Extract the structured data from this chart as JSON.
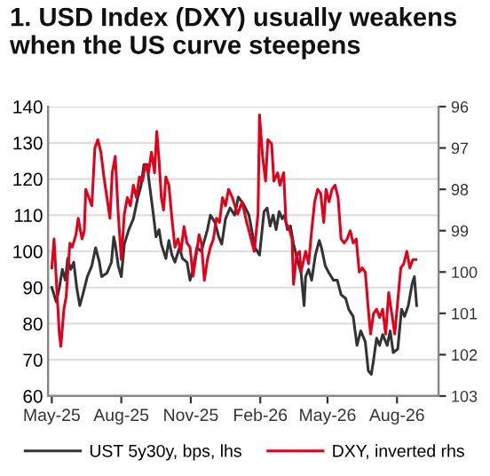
{
  "chart_data": {
    "type": "line",
    "title": "1. USD Index (DXY) usually weakens\nwhen the US curve steepens",
    "xlim": [
      "2025-04-26",
      "2026-09-25"
    ],
    "xticks": [
      {
        "value": "2025-05-01",
        "label": "May-25"
      },
      {
        "value": "2025-08-01",
        "label": "Aug-25"
      },
      {
        "value": "2025-11-01",
        "label": "Nov-25"
      },
      {
        "value": "2026-02-01",
        "label": "Feb-26"
      },
      {
        "value": "2026-05-01",
        "label": "May-26"
      },
      {
        "value": "2026-08-01",
        "label": "Aug-26"
      }
    ],
    "ylim": [
      60,
      140
    ],
    "yticks": [
      60,
      70,
      80,
      90,
      100,
      110,
      120,
      130,
      140
    ],
    "y2lim": [
      103,
      96
    ],
    "y2ticks": [
      96,
      97,
      98,
      99,
      100,
      101,
      102,
      103
    ],
    "grid": "y",
    "legend": "bottom",
    "marker": "none",
    "line_style": "solid",
    "series": [
      {
        "name": "UST 5y30y, bps, lhs",
        "color": "#333333",
        "x": [
          "2025-05-01",
          "2025-05-07",
          "2025-05-11",
          "2025-05-15",
          "2025-05-19",
          "2025-05-22",
          "2025-05-26",
          "2025-05-30",
          "2025-06-03",
          "2025-06-07",
          "2025-06-11",
          "2025-06-17",
          "2025-06-23",
          "2025-06-28",
          "2025-07-03",
          "2025-07-06",
          "2025-07-13",
          "2025-07-19",
          "2025-07-22",
          "2025-07-24",
          "2025-07-28",
          "2025-08-01",
          "2025-08-05",
          "2025-08-11",
          "2025-08-17",
          "2025-08-23",
          "2025-08-27",
          "2025-08-31",
          "2025-09-04",
          "2025-09-07",
          "2025-09-12",
          "2025-09-16",
          "2025-09-20",
          "2025-09-23",
          "2025-09-29",
          "2025-10-03",
          "2025-10-07",
          "2025-10-11",
          "2025-10-17",
          "2025-10-21",
          "2025-10-27",
          "2025-10-31",
          "2025-11-04",
          "2025-11-09",
          "2025-11-15",
          "2025-11-19",
          "2025-11-23",
          "2025-11-27",
          "2025-12-03",
          "2025-12-08",
          "2025-12-12",
          "2025-12-17",
          "2025-12-23",
          "2025-12-29",
          "2026-01-03",
          "2026-01-10",
          "2026-01-17",
          "2026-01-25",
          "2026-01-31",
          "2026-02-06",
          "2026-02-10",
          "2026-02-14",
          "2026-02-18",
          "2026-02-22",
          "2026-02-26",
          "2026-03-02",
          "2026-03-05",
          "2026-03-09",
          "2026-03-13",
          "2026-03-17",
          "2026-03-23",
          "2026-03-27",
          "2026-03-31",
          "2026-04-02",
          "2026-04-06",
          "2026-04-10",
          "2026-04-15",
          "2026-04-20",
          "2026-04-23",
          "2026-04-28",
          "2026-05-03",
          "2026-05-09",
          "2026-05-14",
          "2026-05-19",
          "2026-05-25",
          "2026-05-29",
          "2026-06-04",
          "2026-06-09",
          "2026-06-14",
          "2026-06-20",
          "2026-06-24",
          "2026-06-28",
          "2026-07-01",
          "2026-07-05",
          "2026-07-09",
          "2026-07-13",
          "2026-07-19",
          "2026-07-23",
          "2026-07-27",
          "2026-08-02",
          "2026-08-07",
          "2026-08-11",
          "2026-08-16",
          "2026-08-21",
          "2026-08-24",
          "2026-08-27"
        ],
        "values": [
          90,
          86,
          90,
          95,
          92,
          98,
          95,
          97,
          90,
          85,
          88,
          93,
          96,
          101,
          97,
          93,
          94,
          97,
          104,
          102,
          96,
          93,
          102,
          106,
          109,
          115,
          118,
          124,
          124,
          119,
          111,
          104,
          106,
          102,
          98,
          103,
          99,
          97,
          101,
          98,
          97,
          92,
          95,
          101,
          100,
          103,
          106,
          110,
          108,
          104,
          102,
          109,
          112,
          110,
          115,
          113,
          110,
          101,
          99,
          111,
          112,
          107,
          110,
          106,
          111,
          109,
          110,
          106,
          107,
          102,
          97,
          94,
          85,
          93,
          95,
          92,
          99,
          103,
          101,
          96,
          94,
          92,
          92,
          88,
          87,
          84,
          82,
          74,
          78,
          75,
          67,
          66,
          70,
          76,
          74,
          77,
          74,
          78,
          72,
          73,
          84,
          82,
          85,
          91,
          93,
          85
        ]
      },
      {
        "name": "DXY, inverted rhs",
        "color": "#e3001b",
        "axis": "y2",
        "x": [
          "2025-05-01",
          "2025-05-04",
          "2025-05-07",
          "2025-05-11",
          "2025-05-13",
          "2025-05-17",
          "2025-05-20",
          "2025-05-25",
          "2025-05-28",
          "2025-06-02",
          "2025-06-05",
          "2025-06-10",
          "2025-06-13",
          "2025-06-15",
          "2025-06-19",
          "2025-06-23",
          "2025-06-27",
          "2025-07-01",
          "2025-07-05",
          "2025-07-09",
          "2025-07-13",
          "2025-07-17",
          "2025-07-20",
          "2025-07-24",
          "2025-07-28",
          "2025-08-01",
          "2025-08-05",
          "2025-08-09",
          "2025-08-13",
          "2025-08-17",
          "2025-08-21",
          "2025-08-25",
          "2025-08-29",
          "2025-09-02",
          "2025-09-06",
          "2025-09-10",
          "2025-09-14",
          "2025-09-17",
          "2025-09-20",
          "2025-09-23",
          "2025-09-26",
          "2025-09-29",
          "2025-10-03",
          "2025-10-07",
          "2025-10-11",
          "2025-10-15",
          "2025-10-19",
          "2025-10-23",
          "2025-10-27",
          "2025-10-31",
          "2025-11-04",
          "2025-11-08",
          "2025-11-12",
          "2025-11-15",
          "2025-11-19",
          "2025-11-23",
          "2025-11-27",
          "2025-12-01",
          "2025-12-05",
          "2025-12-09",
          "2025-12-13",
          "2025-12-17",
          "2025-12-21",
          "2025-12-26",
          "2026-01-02",
          "2026-01-08",
          "2026-01-14",
          "2026-01-17",
          "2026-01-24",
          "2026-01-29",
          "2026-01-31",
          "2026-02-04",
          "2026-02-08",
          "2026-02-11",
          "2026-02-16",
          "2026-02-19",
          "2026-02-24",
          "2026-02-27",
          "2026-03-04",
          "2026-03-07",
          "2026-03-12",
          "2026-03-15",
          "2026-03-17",
          "2026-03-21",
          "2026-03-25",
          "2026-03-27",
          "2026-04-02",
          "2026-04-06",
          "2026-04-10",
          "2026-04-14",
          "2026-04-18",
          "2026-04-22",
          "2026-04-26",
          "2026-04-29",
          "2026-05-03",
          "2026-05-07",
          "2026-05-11",
          "2026-05-15",
          "2026-05-19",
          "2026-05-23",
          "2026-05-27",
          "2026-05-31",
          "2026-06-04",
          "2026-06-08",
          "2026-06-12",
          "2026-06-16",
          "2026-06-20",
          "2026-06-24",
          "2026-06-27",
          "2026-07-01",
          "2026-07-05",
          "2026-07-09",
          "2026-07-13",
          "2026-07-17",
          "2026-07-21",
          "2026-07-25",
          "2026-07-29",
          "2026-08-02",
          "2026-08-06",
          "2026-08-10",
          "2026-08-14",
          "2026-08-18",
          "2026-08-22",
          "2026-08-26"
        ],
        "values": [
          99.9,
          99.2,
          100.2,
          101.5,
          101.8,
          100.9,
          100.6,
          99.3,
          99.4,
          99.1,
          98.7,
          99.2,
          99.0,
          98.0,
          98.2,
          98.4,
          97.0,
          96.8,
          97.1,
          97.7,
          98.2,
          98.7,
          97.6,
          97.2,
          98.6,
          99.7,
          98.6,
          98.2,
          98.4,
          97.9,
          98.2,
          97.7,
          97.8,
          97.4,
          97.6,
          97.1,
          97.6,
          96.6,
          97.3,
          98.2,
          98.5,
          97.7,
          97.9,
          98.7,
          99.4,
          99.2,
          99.5,
          98.9,
          99.3,
          99.4,
          100.1,
          99.6,
          99.1,
          99.3,
          100.2,
          99.7,
          99.4,
          99.2,
          98.7,
          98.8,
          98.2,
          98.4,
          98.0,
          98.2,
          98.6,
          98.3,
          98.8,
          99.0,
          99.5,
          98.6,
          96.2,
          97.2,
          97.8,
          96.8,
          96.9,
          97.8,
          97.6,
          97.9,
          97.6,
          98.8,
          99.0,
          99.2,
          100.3,
          99.6,
          99.5,
          100.0,
          99.5,
          99.8,
          99.0,
          98.3,
          98.0,
          98.1,
          98.8,
          98.0,
          98.3,
          98.0,
          97.9,
          98.2,
          99.2,
          99.3,
          99.2,
          99.0,
          99.3,
          99.2,
          100.0,
          99.9,
          100.0,
          100.9,
          101.5,
          101.0,
          100.9,
          101.1,
          100.9,
          101.5,
          100.5,
          101.0,
          101.5,
          100.7,
          99.9,
          99.8,
          99.5,
          99.9,
          99.7,
          99.7
        ]
      }
    ]
  }
}
